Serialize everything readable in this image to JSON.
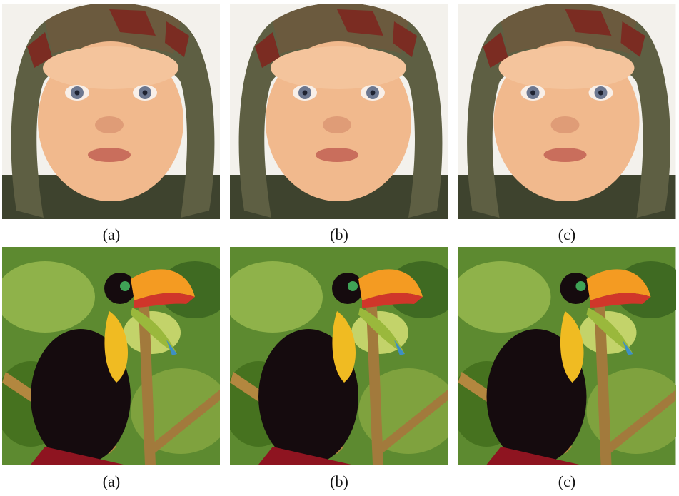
{
  "figure": {
    "rows": [
      {
        "captions": [
          "(a)",
          "(b)",
          "(c)"
        ]
      },
      {
        "captions": [
          "(a)",
          "(b)",
          "(c)"
        ]
      }
    ]
  }
}
